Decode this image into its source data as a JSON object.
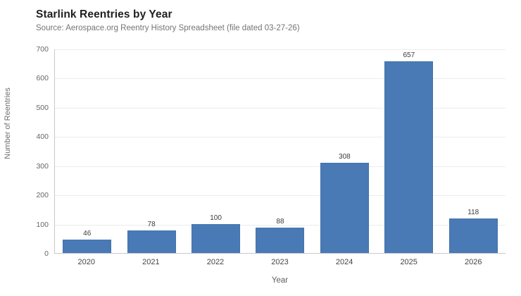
{
  "header": {
    "title": "Starlink Reentries by Year",
    "subtitle": "Source: Aerospace.org Reentry History Spreadsheet (file dated 03-27-26)"
  },
  "chart_data": {
    "type": "bar",
    "title": "Starlink Reentries by Year",
    "subtitle": "Source: Aerospace.org Reentry History Spreadsheet (file dated 03-27-26)",
    "categories": [
      "2020",
      "2021",
      "2022",
      "2023",
      "2024",
      "2025",
      "2026"
    ],
    "values": [
      46,
      78,
      100,
      88,
      308,
      657,
      118
    ],
    "xlabel": "Year",
    "ylabel": "Number of Reentries",
    "ylim": [
      0,
      700
    ],
    "ytick_step": 100,
    "yticks": [
      0,
      100,
      200,
      300,
      400,
      500,
      600,
      700
    ],
    "grid": "horizontal",
    "legend": "none",
    "colors": {
      "bar_fill": "#4a7ab5",
      "bar_edge": "#4173ae",
      "gridline": "#ececec",
      "axis_spine": "#c9c9c9",
      "title_text": "#1f1f1f",
      "subtitle_text": "#757575",
      "tick_text": "#666666",
      "value_label_text": "#3a3a3a"
    },
    "value_labels": true
  }
}
